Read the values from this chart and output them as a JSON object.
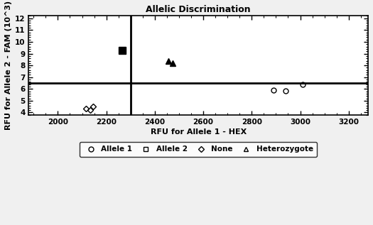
{
  "title": "Allelic Discrimination",
  "xlabel": "RFU for Allele 1 - HEX",
  "ylabel": "RFU for Allele 2 - FAM (10^3)",
  "xlim": [
    1880,
    3280
  ],
  "ylim": [
    3.8,
    12.2
  ],
  "xticks": [
    2000,
    2200,
    2400,
    2600,
    2800,
    3000,
    3200
  ],
  "yticks": [
    4,
    5,
    6,
    7,
    8,
    9,
    10,
    11,
    12
  ],
  "vline_x": 2300,
  "hline_y": 6.5,
  "allele1_points": [
    [
      2890,
      5.9
    ],
    [
      2940,
      5.85
    ],
    [
      3010,
      6.35
    ]
  ],
  "allele2_points": [
    [
      2265,
      9.3
    ]
  ],
  "none_points": [
    [
      2115,
      4.35
    ],
    [
      2145,
      4.5
    ],
    [
      2135,
      4.18
    ]
  ],
  "heterozygote_points": [
    [
      2455,
      8.35
    ],
    [
      2475,
      8.2
    ]
  ],
  "background_color": "#f0f0f0",
  "plot_bg_color": "#ffffff",
  "line_color": "#000000",
  "marker_color": "#000000",
  "title_fontsize": 9,
  "label_fontsize": 8,
  "tick_fontsize": 7.5,
  "legend_fontsize": 7.5
}
